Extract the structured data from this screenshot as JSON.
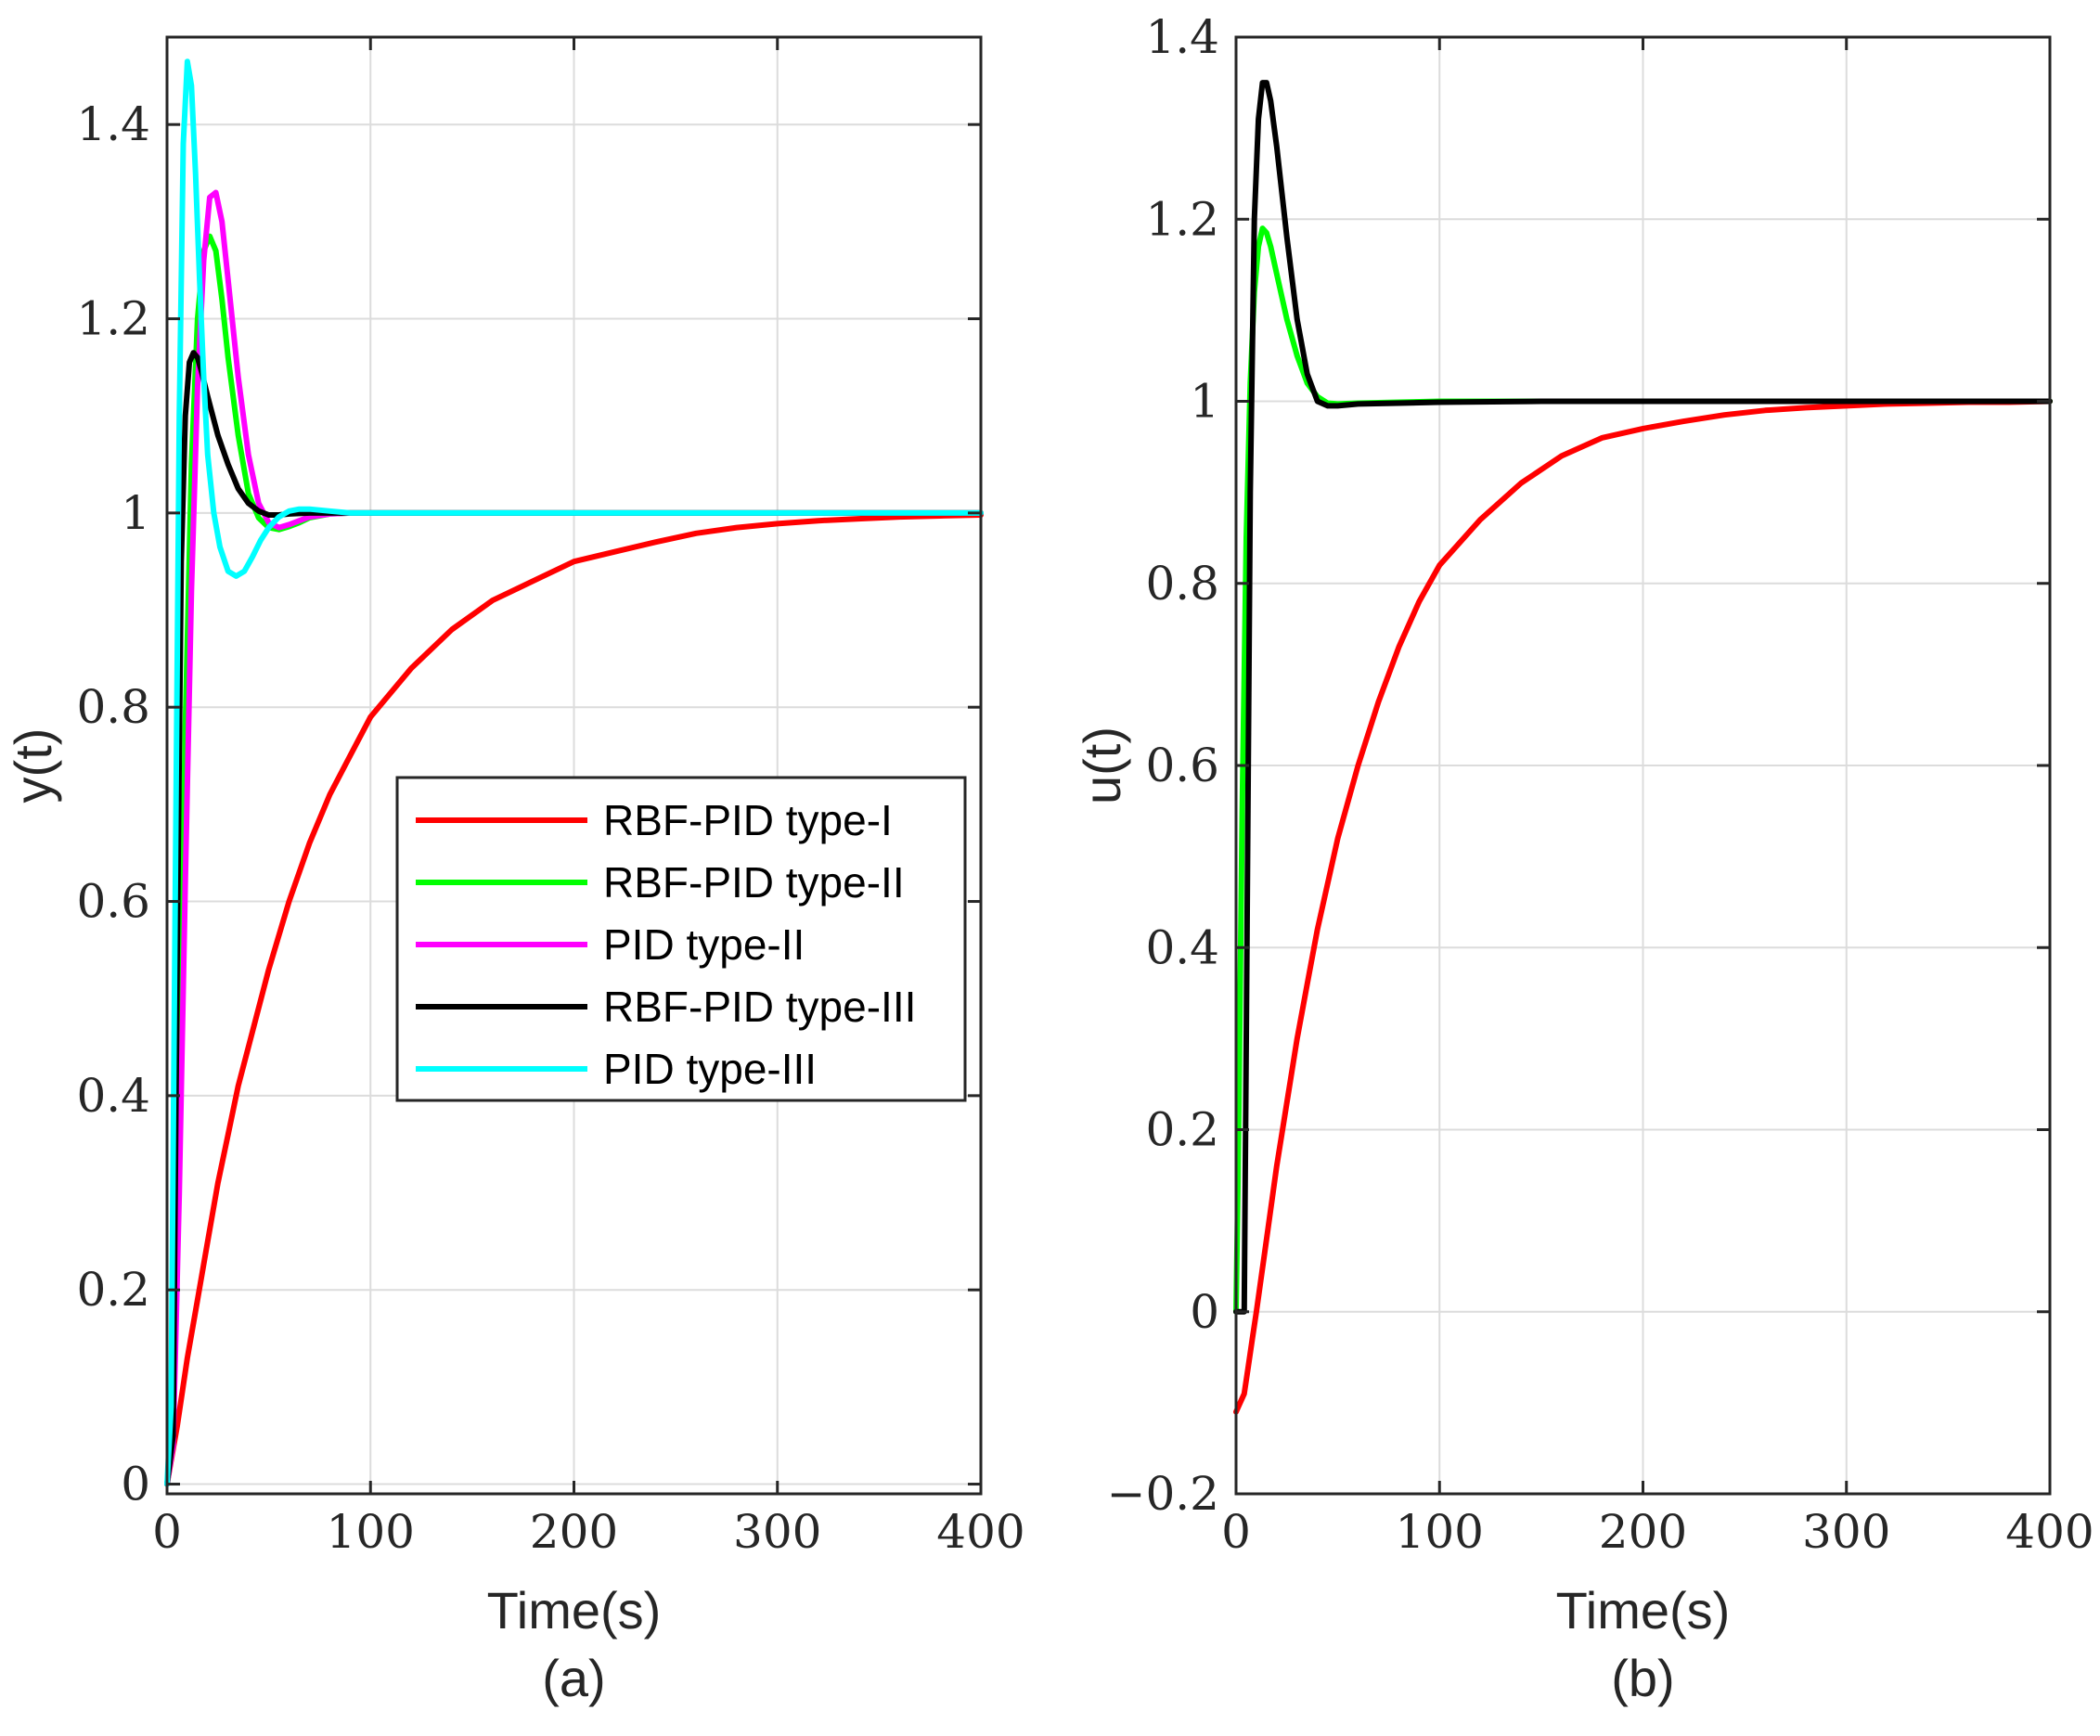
{
  "chart_data": [
    {
      "type": "line",
      "panel_label": "(a)",
      "xlabel": "Time(s)",
      "ylabel": "y(t)",
      "xlim": [
        0,
        400
      ],
      "ylim": [
        -0.01,
        1.49
      ],
      "xticks": [
        0,
        100,
        200,
        300,
        400
      ],
      "yticks": [
        0,
        0.2,
        0.4,
        0.6,
        0.8,
        1,
        1.2,
        1.4
      ],
      "xtick_labels": [
        "0",
        "100",
        "200",
        "300",
        "400"
      ],
      "ytick_labels": [
        "0",
        "0.2",
        "0.4",
        "0.6",
        "0.8",
        "1",
        "1.2",
        "1.4"
      ],
      "grid": true,
      "legend_position": "center-right",
      "legend": [
        "RBF-PID type-I",
        "RBF-PID type-II",
        "PID type-II",
        "RBF-PID type-III",
        "PID type-III"
      ],
      "series": [
        {
          "name": "RBF-PID type-I",
          "color": "#ff0000",
          "x": [
            0,
            5,
            10,
            15,
            20,
            25,
            30,
            35,
            40,
            50,
            60,
            70,
            80,
            90,
            100,
            120,
            140,
            160,
            180,
            200,
            220,
            240,
            260,
            280,
            300,
            320,
            340,
            360,
            380,
            400
          ],
          "y": [
            0,
            0.06,
            0.13,
            0.19,
            0.25,
            0.31,
            0.36,
            0.41,
            0.45,
            0.53,
            0.6,
            0.66,
            0.71,
            0.75,
            0.79,
            0.84,
            0.88,
            0.91,
            0.93,
            0.95,
            0.96,
            0.97,
            0.979,
            0.985,
            0.989,
            0.992,
            0.994,
            0.996,
            0.997,
            0.998
          ]
        },
        {
          "name": "RBF-PID type-II",
          "color": "#00ff00",
          "x": [
            0,
            3,
            6,
            9,
            12,
            15,
            18,
            21,
            24,
            27,
            30,
            35,
            40,
            45,
            50,
            55,
            60,
            65,
            70,
            80,
            90,
            100,
            150,
            200,
            300,
            400
          ],
          "y": [
            0,
            0.05,
            0.4,
            0.78,
            1.05,
            1.2,
            1.27,
            1.285,
            1.27,
            1.22,
            1.16,
            1.08,
            1.02,
            0.995,
            0.985,
            0.983,
            0.986,
            0.99,
            0.995,
            0.999,
            1.0,
            1.0,
            1.0,
            1.0,
            1.0,
            1.0
          ]
        },
        {
          "name": "PID type-II",
          "color": "#ff00ff",
          "x": [
            0,
            3,
            6,
            9,
            12,
            15,
            18,
            21,
            24,
            27,
            30,
            35,
            40,
            45,
            50,
            55,
            60,
            65,
            70,
            80,
            90,
            100,
            150,
            200,
            300,
            400
          ],
          "y": [
            0,
            0.04,
            0.3,
            0.62,
            0.92,
            1.13,
            1.26,
            1.325,
            1.33,
            1.3,
            1.24,
            1.14,
            1.06,
            1.01,
            0.99,
            0.985,
            0.988,
            0.992,
            0.996,
            0.999,
            1.0,
            1.0,
            1.0,
            1.0,
            1.0,
            1.0
          ]
        },
        {
          "name": "RBF-PID type-III",
          "color": "#000000",
          "x": [
            0,
            3,
            5,
            7,
            9,
            11,
            13,
            15,
            17,
            20,
            25,
            30,
            35,
            40,
            45,
            50,
            55,
            60,
            70,
            80,
            100,
            150,
            200,
            300,
            400
          ],
          "y": [
            0,
            0.05,
            0.55,
            0.95,
            1.1,
            1.155,
            1.165,
            1.16,
            1.145,
            1.12,
            1.08,
            1.05,
            1.025,
            1.01,
            1.002,
            0.998,
            0.998,
            0.999,
            1.0,
            1.0,
            1.0,
            1.0,
            1.0,
            1.0,
            1.0
          ]
        },
        {
          "name": "PID type-III",
          "color": "#00ffff",
          "x": [
            0,
            2,
            4,
            6,
            8,
            10,
            12,
            14,
            16,
            18,
            20,
            23,
            26,
            30,
            34,
            38,
            42,
            46,
            50,
            55,
            60,
            65,
            70,
            80,
            90,
            100,
            150,
            200,
            300,
            400
          ],
          "y": [
            0,
            0.08,
            0.6,
            1.1,
            1.38,
            1.465,
            1.44,
            1.35,
            1.24,
            1.14,
            1.06,
            1.0,
            0.965,
            0.94,
            0.935,
            0.94,
            0.955,
            0.972,
            0.985,
            0.996,
            1.002,
            1.004,
            1.004,
            1.002,
            1.0,
            1.0,
            1.0,
            1.0,
            1.0,
            1.0
          ]
        }
      ]
    },
    {
      "type": "line",
      "panel_label": "(b)",
      "xlabel": "Time(s)",
      "ylabel": "u(t)",
      "xlim": [
        0,
        400
      ],
      "ylim": [
        -0.2,
        1.4
      ],
      "xticks": [
        0,
        100,
        200,
        300,
        400
      ],
      "yticks": [
        -0.2,
        0,
        0.2,
        0.4,
        0.6,
        0.8,
        1,
        1.2,
        1.4
      ],
      "xtick_labels": [
        "0",
        "100",
        "200",
        "300",
        "400"
      ],
      "ytick_labels": [
        "−0.2",
        "0",
        "0.2",
        "0.4",
        "0.6",
        "0.8",
        "1",
        "1.2",
        "1.4"
      ],
      "grid": true,
      "series": [
        {
          "name": "RBF-PID type-I",
          "color": "#ff0000",
          "x": [
            0,
            2,
            4,
            6,
            8,
            10,
            15,
            20,
            25,
            30,
            35,
            40,
            50,
            60,
            70,
            80,
            90,
            100,
            120,
            140,
            160,
            180,
            200,
            220,
            240,
            260,
            280,
            300,
            320,
            340,
            360,
            380,
            400
          ],
          "y": [
            -0.11,
            -0.1,
            -0.09,
            -0.06,
            -0.03,
            0.0,
            0.08,
            0.16,
            0.23,
            0.3,
            0.36,
            0.42,
            0.52,
            0.6,
            0.67,
            0.73,
            0.78,
            0.82,
            0.87,
            0.91,
            0.94,
            0.96,
            0.97,
            0.978,
            0.985,
            0.99,
            0.993,
            0.995,
            0.997,
            0.998,
            0.999,
            0.999,
            1.0
          ]
        },
        {
          "name": "RBF-PID type-II",
          "color": "#00ff00",
          "x": [
            0,
            1,
            3,
            5,
            7,
            9,
            11,
            13,
            15,
            17,
            20,
            25,
            30,
            35,
            40,
            45,
            50,
            60,
            80,
            100,
            150,
            200,
            300,
            400
          ],
          "y": [
            0,
            0.15,
            0.55,
            0.85,
            1.02,
            1.12,
            1.17,
            1.19,
            1.185,
            1.17,
            1.14,
            1.09,
            1.05,
            1.02,
            1.005,
            0.998,
            0.997,
            0.998,
            0.999,
            1.0,
            1.0,
            1.0,
            1.0,
            1.0
          ]
        },
        {
          "name": "RBF-PID type-III",
          "color": "#000000",
          "x": [
            0,
            2,
            4,
            5,
            7,
            9,
            11,
            13,
            15,
            17,
            20,
            25,
            30,
            35,
            40,
            45,
            50,
            60,
            80,
            100,
            150,
            200,
            300,
            400
          ],
          "y": [
            0,
            0,
            0,
            0.3,
            0.9,
            1.2,
            1.31,
            1.35,
            1.35,
            1.33,
            1.28,
            1.18,
            1.09,
            1.03,
            1.0,
            0.995,
            0.995,
            0.997,
            0.998,
            0.999,
            1.0,
            1.0,
            1.0,
            1.0
          ]
        }
      ]
    }
  ]
}
